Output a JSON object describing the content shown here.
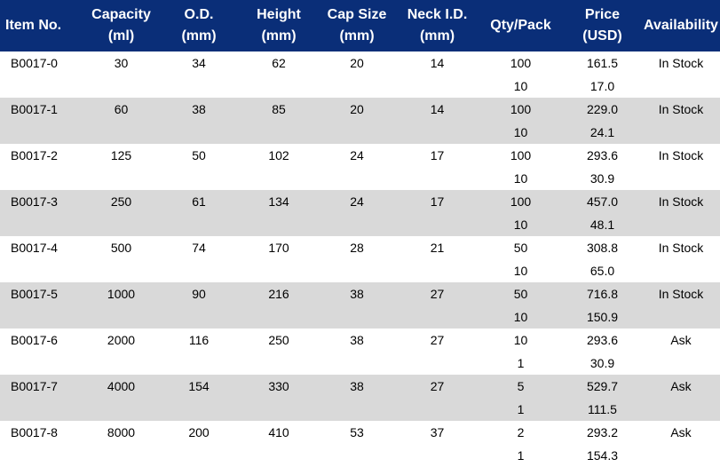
{
  "headers": [
    "Item No.",
    "Capacity\n(ml)",
    "O.D.\n(mm)",
    "Height\n(mm)",
    "Cap Size\n(mm)",
    "Neck I.D.\n(mm)",
    "Qty/Pack",
    "Price\n(USD)",
    "Availability"
  ],
  "rows": [
    {
      "item": "B0017-0",
      "capacity": "30",
      "od": "34",
      "height": "62",
      "cap": "20",
      "neck": "14",
      "qty": [
        "100",
        "10"
      ],
      "price": [
        "161.5",
        "17.0"
      ],
      "availability": "In Stock"
    },
    {
      "item": "B0017-1",
      "capacity": "60",
      "od": "38",
      "height": "85",
      "cap": "20",
      "neck": "14",
      "qty": [
        "100",
        "10"
      ],
      "price": [
        "229.0",
        "24.1"
      ],
      "availability": "In Stock"
    },
    {
      "item": "B0017-2",
      "capacity": "125",
      "od": "50",
      "height": "102",
      "cap": "24",
      "neck": "17",
      "qty": [
        "100",
        "10"
      ],
      "price": [
        "293.6",
        "30.9"
      ],
      "availability": "In Stock"
    },
    {
      "item": "B0017-3",
      "capacity": "250",
      "od": "61",
      "height": "134",
      "cap": "24",
      "neck": "17",
      "qty": [
        "100",
        "10"
      ],
      "price": [
        "457.0",
        "48.1"
      ],
      "availability": "In Stock"
    },
    {
      "item": "B0017-4",
      "capacity": "500",
      "od": "74",
      "height": "170",
      "cap": "28",
      "neck": "21",
      "qty": [
        "50",
        "10"
      ],
      "price": [
        "308.8",
        "65.0"
      ],
      "availability": "In Stock"
    },
    {
      "item": "B0017-5",
      "capacity": "1000",
      "od": "90",
      "height": "216",
      "cap": "38",
      "neck": "27",
      "qty": [
        "50",
        "10"
      ],
      "price": [
        "716.8",
        "150.9"
      ],
      "availability": "In Stock"
    },
    {
      "item": "B0017-6",
      "capacity": "2000",
      "od": "116",
      "height": "250",
      "cap": "38",
      "neck": "27",
      "qty": [
        "10",
        "1"
      ],
      "price": [
        "293.6",
        "30.9"
      ],
      "availability": "Ask"
    },
    {
      "item": "B0017-7",
      "capacity": "4000",
      "od": "154",
      "height": "330",
      "cap": "38",
      "neck": "27",
      "qty": [
        "5",
        "1"
      ],
      "price": [
        "529.7",
        "111.5"
      ],
      "availability": "Ask"
    },
    {
      "item": "B0017-8",
      "capacity": "8000",
      "od": "200",
      "height": "410",
      "cap": "53",
      "neck": "37",
      "qty": [
        "2",
        "1"
      ],
      "price": [
        "293.2",
        "154.3"
      ],
      "availability": "Ask"
    }
  ]
}
